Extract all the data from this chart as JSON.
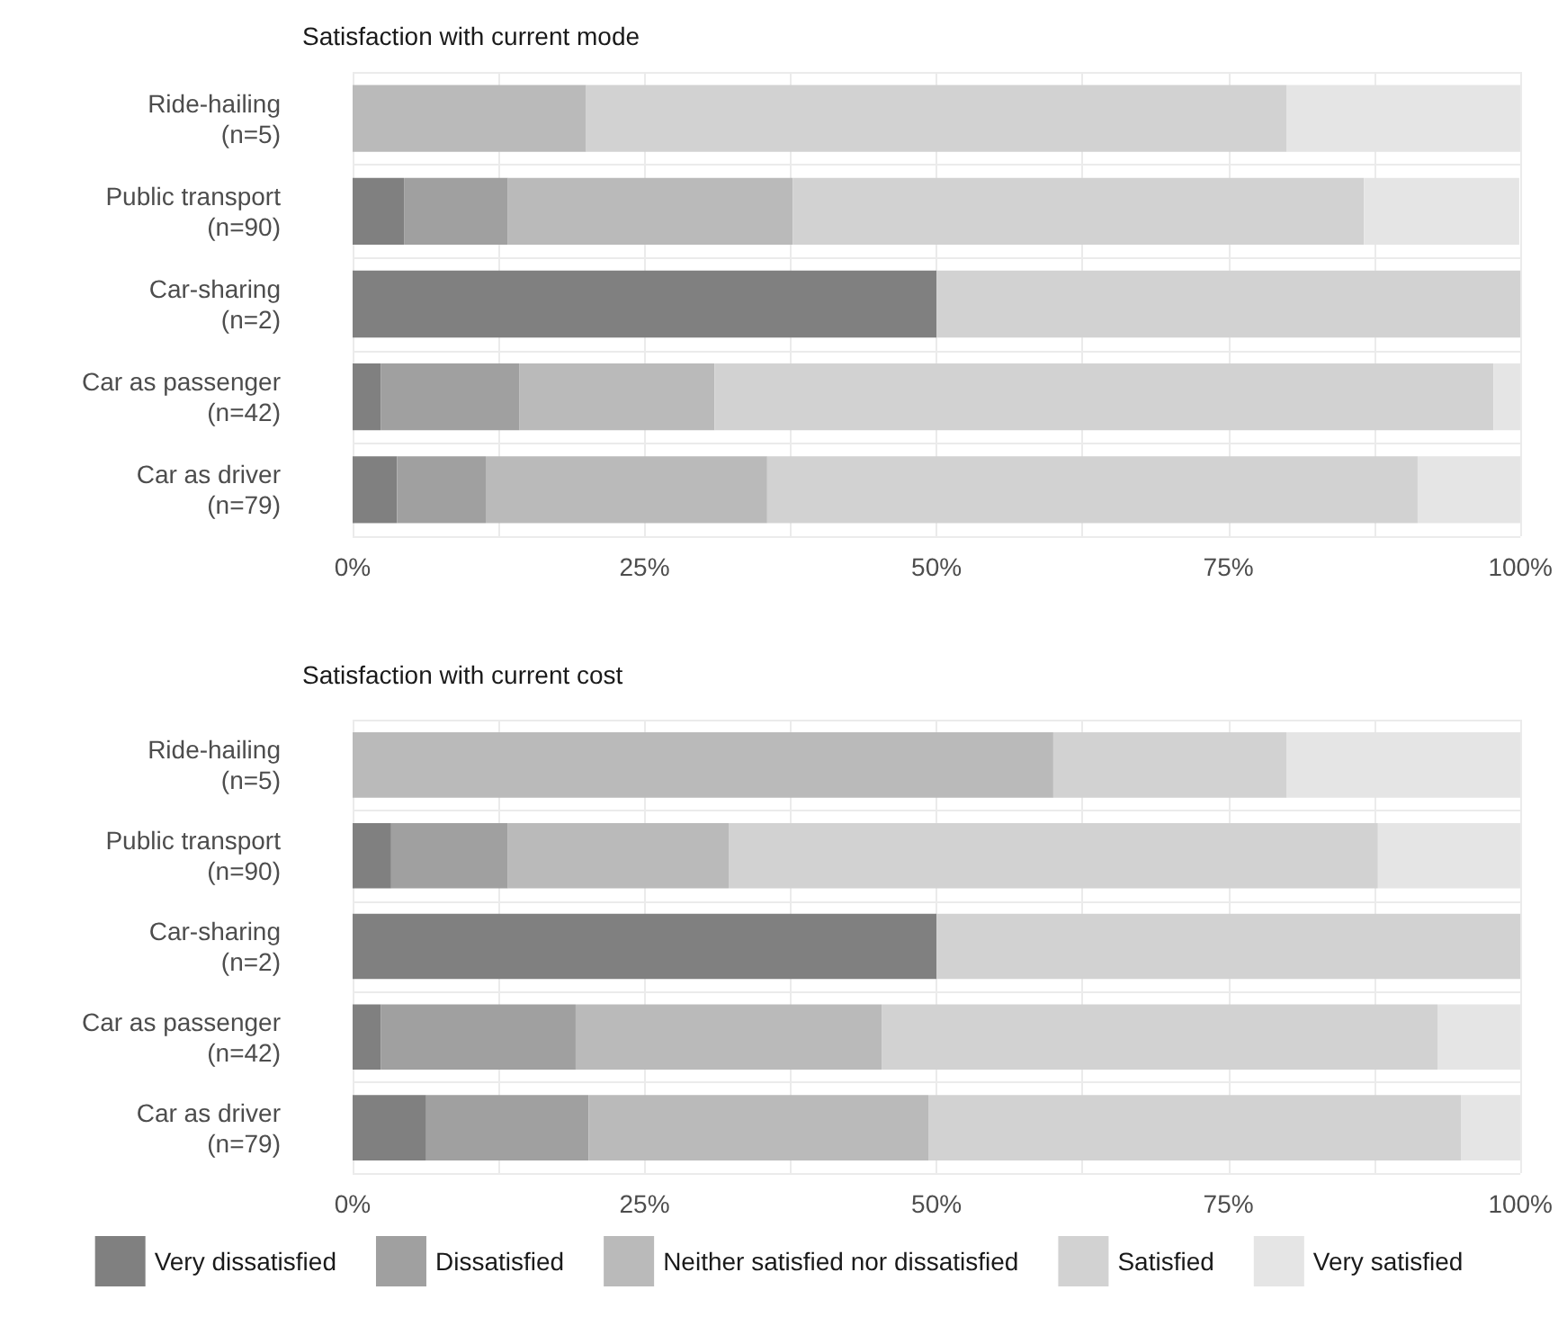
{
  "chart_data": [
    {
      "type": "bar",
      "title": "Satisfaction with current mode",
      "orientation": "horizontal",
      "stacked": true,
      "grid": true,
      "legend": false,
      "categories": [
        "Ride-hailing\n(n=5)",
        "Public transport\n(n=90)",
        "Car-sharing\n(n=2)",
        "Car as passenger\n(n=42)",
        "Car as driver\n(n=79)"
      ],
      "series": [
        {
          "color": "#808080",
          "values": [
            0,
            4.4,
            50,
            2.4,
            3.8
          ]
        },
        {
          "color": "#a0a0a0",
          "values": [
            0,
            8.9,
            0,
            11.9,
            7.6
          ]
        },
        {
          "color": "#bababa",
          "values": [
            20,
            24.4,
            0,
            16.7,
            24.1
          ]
        },
        {
          "color": "#d2d2d2",
          "values": [
            60,
            48.9,
            50,
            66.7,
            55.7
          ]
        },
        {
          "color": "#e5e5e5",
          "values": [
            20,
            13.3,
            0,
            2.4,
            8.9
          ]
        }
      ],
      "xlim": [
        0,
        100
      ],
      "xticks": [
        {
          "value": 0,
          "label": "0%"
        },
        {
          "value": 12.5,
          "label": null
        },
        {
          "value": 25,
          "label": "25%"
        },
        {
          "value": 37.5,
          "label": null
        },
        {
          "value": 50,
          "label": "50%"
        },
        {
          "value": 62.5,
          "label": null
        },
        {
          "value": 75,
          "label": "75%"
        },
        {
          "value": 87.5,
          "label": null
        },
        {
          "value": 100,
          "label": "100%"
        }
      ]
    },
    {
      "type": "bar",
      "title": "Satisfaction with current cost",
      "orientation": "horizontal",
      "stacked": true,
      "grid": true,
      "legend": "bottom",
      "categories": [
        "Ride-hailing\n(n=5)",
        "Public transport\n(n=90)",
        "Car-sharing\n(n=2)",
        "Car as passenger\n(n=42)",
        "Car as driver\n(n=79)"
      ],
      "series": [
        {
          "name": "Very dissatisfied",
          "color": "#808080",
          "values": [
            0,
            3.3,
            50,
            2.4,
            6.3
          ]
        },
        {
          "name": "Dissatisfied",
          "color": "#a0a0a0",
          "values": [
            0,
            10,
            0,
            16.7,
            13.9
          ]
        },
        {
          "name": "Neither satisfied nor dissatisfied",
          "color": "#bababa",
          "values": [
            60,
            18.9,
            0,
            26.2,
            29.1
          ]
        },
        {
          "name": "Satisfied",
          "color": "#d2d2d2",
          "values": [
            20,
            55.6,
            50,
            47.6,
            45.6
          ]
        },
        {
          "name": "Very satisfied",
          "color": "#e5e5e5",
          "values": [
            20,
            12.2,
            0,
            7.1,
            5.1
          ]
        }
      ],
      "xlim": [
        0,
        100
      ],
      "xticks": [
        {
          "value": 0,
          "label": "0%"
        },
        {
          "value": 12.5,
          "label": null
        },
        {
          "value": 25,
          "label": "25%"
        },
        {
          "value": 37.5,
          "label": null
        },
        {
          "value": 50,
          "label": "50%"
        },
        {
          "value": 62.5,
          "label": null
        },
        {
          "value": 75,
          "label": "75%"
        },
        {
          "value": 87.5,
          "label": null
        },
        {
          "value": 100,
          "label": "100%"
        }
      ]
    }
  ]
}
